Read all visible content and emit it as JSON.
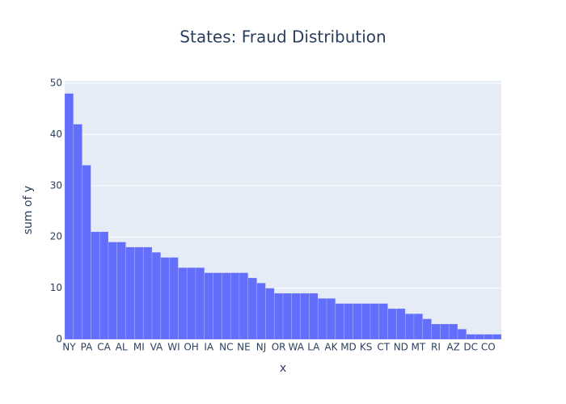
{
  "chart_data": {
    "type": "bar",
    "title": "States: Fraud Distribution",
    "x_label": "x",
    "y_label": "sum of y",
    "categories": [
      "NY",
      null,
      "PA",
      null,
      "CA",
      null,
      "AL",
      null,
      "MI",
      null,
      "VA",
      null,
      "WI",
      null,
      "OH",
      null,
      "IA",
      null,
      "NC",
      null,
      "NE",
      null,
      "NJ",
      null,
      "OR",
      null,
      "WA",
      null,
      "LA",
      null,
      "AK",
      null,
      "MD",
      null,
      "KS",
      null,
      "CT",
      null,
      "ND",
      null,
      "MT",
      null,
      "RI",
      null,
      "AZ",
      null,
      "DC",
      null,
      "CO",
      null
    ],
    "values": [
      48,
      42,
      34,
      21,
      21,
      19,
      19,
      18,
      18,
      18,
      17,
      16,
      16,
      14,
      14,
      14,
      13,
      13,
      13,
      13,
      13,
      12,
      11,
      10,
      9,
      9,
      9,
      9,
      9,
      8,
      8,
      7,
      7,
      7,
      7,
      7,
      7,
      6,
      6,
      5,
      5,
      4,
      3,
      3,
      3,
      2,
      1,
      1,
      1,
      1
    ],
    "color": "#636efa",
    "ylim": [
      0,
      50
    ],
    "yticks": [
      0,
      10,
      20,
      30,
      40,
      50
    ],
    "grid": true
  }
}
